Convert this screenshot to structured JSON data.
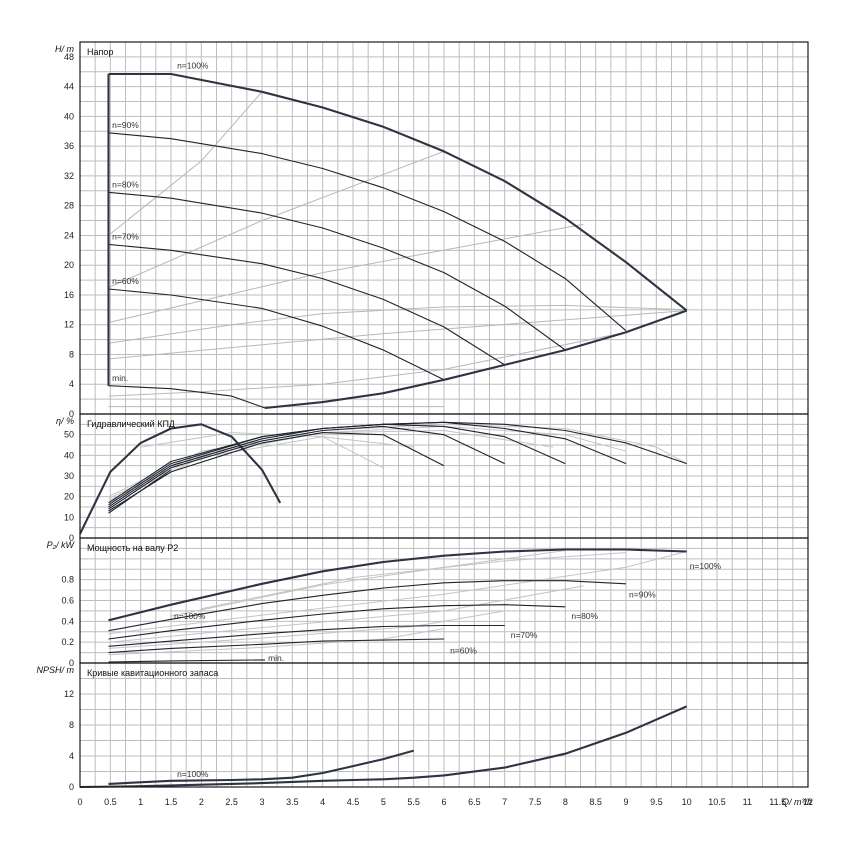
{
  "chart_data": [
    {
      "type": "line",
      "title": "Напор",
      "ylabel": "H/ m",
      "ylim": [
        0,
        50
      ],
      "yticks": [
        0,
        4,
        8,
        12,
        16,
        20,
        24,
        28,
        32,
        36,
        40,
        44,
        48
      ],
      "xlim": [
        0,
        12
      ],
      "series": [
        {
          "name": "n=100%",
          "x": [
            0.47,
            1.5,
            3.0,
            4.0,
            5.0,
            6.0,
            7.0,
            8.0,
            9.0,
            10.0
          ],
          "y": [
            45.7,
            45.7,
            43.3,
            41.2,
            38.6,
            35.3,
            31.3,
            26.3,
            20.4,
            13.9
          ]
        },
        {
          "name": "n=90%",
          "x": [
            0.47,
            1.5,
            3.0,
            4.0,
            5.0,
            6.0,
            7.0,
            8.0,
            9.0
          ],
          "y": [
            37.8,
            37.0,
            35.0,
            33.0,
            30.4,
            27.2,
            23.2,
            18.2,
            11.2
          ]
        },
        {
          "name": "n=80%",
          "x": [
            0.47,
            1.5,
            3.0,
            4.0,
            5.0,
            6.0,
            7.0,
            8.0
          ],
          "y": [
            29.8,
            29.0,
            27.0,
            25.0,
            22.3,
            19.0,
            14.5,
            8.6
          ]
        },
        {
          "name": "n=70%",
          "x": [
            0.47,
            1.5,
            3.0,
            4.0,
            5.0,
            6.0,
            7.0
          ],
          "y": [
            22.8,
            22.0,
            20.2,
            18.2,
            15.4,
            11.7,
            6.6
          ]
        },
        {
          "name": "n=60%",
          "x": [
            0.47,
            1.5,
            3.0,
            4.0,
            5.0,
            6.0
          ],
          "y": [
            16.8,
            16.0,
            14.2,
            11.8,
            8.6,
            4.6
          ]
        },
        {
          "name": "min.",
          "x": [
            0.47,
            1.5,
            2.5,
            3.05
          ],
          "y": [
            3.8,
            3.4,
            2.4,
            0.8
          ]
        },
        {
          "name": "",
          "x": [
            0.47,
            0.47
          ],
          "y": [
            3.8,
            45.7
          ]
        },
        {
          "name": "",
          "x": [
            3.05,
            4.0,
            5.0,
            6.0,
            7.0,
            8.0,
            9.0,
            10.0
          ],
          "y": [
            0.8,
            1.6,
            2.8,
            4.6,
            6.6,
            8.6,
            11.0,
            13.9
          ]
        }
      ],
      "labels": [
        "n=100%",
        "n=90%",
        "n=80%",
        "n=70%",
        "n=60%",
        "min."
      ]
    },
    {
      "type": "line",
      "title": "Гидравлический КПД",
      "ylabel": "η/ %",
      "ylim": [
        0,
        60
      ],
      "yticks": [
        0,
        10,
        20,
        30,
        40,
        50
      ],
      "xlim": [
        0,
        12
      ],
      "series": [
        {
          "name": "",
          "x": [
            0,
            0.5,
            1.0,
            1.5,
            2.0,
            2.5,
            3.0,
            3.3
          ],
          "y": [
            2,
            32,
            46,
            53,
            55,
            49,
            33,
            17
          ]
        },
        {
          "name": "",
          "x": [
            0.47,
            1.5,
            3.0,
            4.0,
            5.0,
            6.0,
            7.0,
            8.0,
            9.0,
            10.0
          ],
          "y": [
            17,
            37,
            49,
            53,
            55,
            56,
            55,
            52,
            46,
            36
          ]
        },
        {
          "name": "",
          "x": [
            0.47,
            1.5,
            3.0,
            4.0,
            5.0,
            6.0,
            7.0,
            8.0,
            9.0
          ],
          "y": [
            16,
            36,
            49,
            53,
            55,
            56,
            53,
            48,
            36
          ]
        },
        {
          "name": "",
          "x": [
            0.47,
            1.5,
            3.0,
            4.0,
            5.0,
            6.0,
            7.0,
            8.0
          ],
          "y": [
            15,
            35,
            48,
            53,
            55,
            54,
            49,
            36
          ]
        },
        {
          "name": "",
          "x": [
            0.47,
            1.5,
            3.0,
            4.0,
            5.0,
            6.0,
            7.0
          ],
          "y": [
            14,
            34,
            47,
            52,
            54,
            50,
            36
          ]
        },
        {
          "name": "",
          "x": [
            0.47,
            1.5,
            3.0,
            4.0,
            5.0,
            6.0
          ],
          "y": [
            13,
            32,
            46,
            51,
            50,
            35
          ]
        },
        {
          "name": "",
          "x": [
            0.47,
            1.5
          ],
          "y": [
            12,
            33
          ]
        }
      ]
    },
    {
      "type": "line",
      "title": "Мощность на валу P2",
      "ylabel": "P₂/ kW",
      "ylim": [
        0,
        1.2
      ],
      "yticks": [
        0,
        0.2,
        0.4,
        0.6,
        0.8
      ],
      "xlim": [
        0,
        12
      ],
      "series": [
        {
          "name": "n=100%",
          "x": [
            0.47,
            1.5,
            3.0,
            4.0,
            5.0,
            6.0,
            7.0,
            8.0,
            9.0,
            10.0
          ],
          "y": [
            0.41,
            0.56,
            0.76,
            0.88,
            0.97,
            1.03,
            1.07,
            1.09,
            1.09,
            1.07
          ]
        },
        {
          "name": "n=90%",
          "x": [
            0.47,
            1.5,
            3.0,
            4.0,
            5.0,
            6.0,
            7.0,
            8.0,
            9.0
          ],
          "y": [
            0.31,
            0.42,
            0.57,
            0.65,
            0.72,
            0.77,
            0.79,
            0.79,
            0.76
          ]
        },
        {
          "name": "n=80%",
          "x": [
            0.47,
            1.5,
            3.0,
            4.0,
            5.0,
            6.0,
            7.0,
            8.0
          ],
          "y": [
            0.23,
            0.31,
            0.41,
            0.47,
            0.52,
            0.55,
            0.56,
            0.54
          ]
        },
        {
          "name": "n=70%",
          "x": [
            0.47,
            1.5,
            3.0,
            4.0,
            5.0,
            6.0,
            7.0
          ],
          "y": [
            0.16,
            0.21,
            0.28,
            0.32,
            0.35,
            0.36,
            0.36
          ]
        },
        {
          "name": "n=60%",
          "x": [
            0.47,
            1.5,
            3.0,
            4.0,
            5.0,
            6.0
          ],
          "y": [
            0.1,
            0.14,
            0.18,
            0.21,
            0.22,
            0.23
          ]
        },
        {
          "name": "min.",
          "x": [
            0.47,
            1.5,
            3.05
          ],
          "y": [
            0.01,
            0.02,
            0.03
          ]
        }
      ],
      "labels": [
        "n=100%",
        "n=90%",
        "n=80%",
        "n=70%",
        "n=60%",
        "n=100%",
        "min."
      ]
    },
    {
      "type": "line",
      "title": "Кривые кавитационного запаса",
      "ylabel": "NPSH/ m",
      "xlabel": "Q/ m³/h",
      "ylim": [
        0,
        16
      ],
      "yticks": [
        0,
        4,
        8,
        12
      ],
      "xlim": [
        0,
        12
      ],
      "xticks": [
        "0",
        "0.5",
        "1",
        "1.5",
        "2",
        "2.5",
        "3",
        "3.5",
        "4",
        "4.5",
        "5",
        "5.5",
        "6",
        "6.5",
        "7",
        "7.5",
        "8",
        "8.5",
        "9",
        "9.5",
        "10",
        "10.5",
        "11",
        "11.5",
        "12"
      ],
      "series": [
        {
          "name": "",
          "x": [
            0,
            1.0,
            2.0,
            3.0,
            4.0,
            4.5,
            5.0,
            5.5,
            6.0,
            7.0,
            8.0,
            9.0,
            10.0
          ],
          "y": [
            0,
            0.1,
            0.3,
            0.5,
            0.8,
            0.9,
            1.0,
            1.2,
            1.5,
            2.5,
            4.3,
            7.0,
            10.4
          ]
        },
        {
          "name": "n=100%",
          "x": [
            0.47,
            1.5,
            2.5,
            3.0,
            3.5,
            4.0,
            4.5,
            5.0,
            5.5
          ],
          "y": [
            0.4,
            0.8,
            0.9,
            1.0,
            1.2,
            1.8,
            2.7,
            3.6,
            4.7
          ]
        }
      ],
      "labels": [
        "n=100%"
      ]
    }
  ]
}
